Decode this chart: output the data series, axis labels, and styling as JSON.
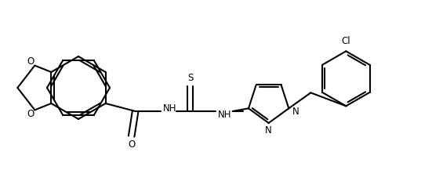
{
  "bg_color": "#ffffff",
  "line_color": "#000000",
  "line_width": 1.5,
  "font_size": 8.5,
  "figsize": [
    5.51,
    2.17
  ],
  "dpi": 100,
  "xlim": [
    0,
    5.51
  ],
  "ylim": [
    0,
    2.17
  ]
}
